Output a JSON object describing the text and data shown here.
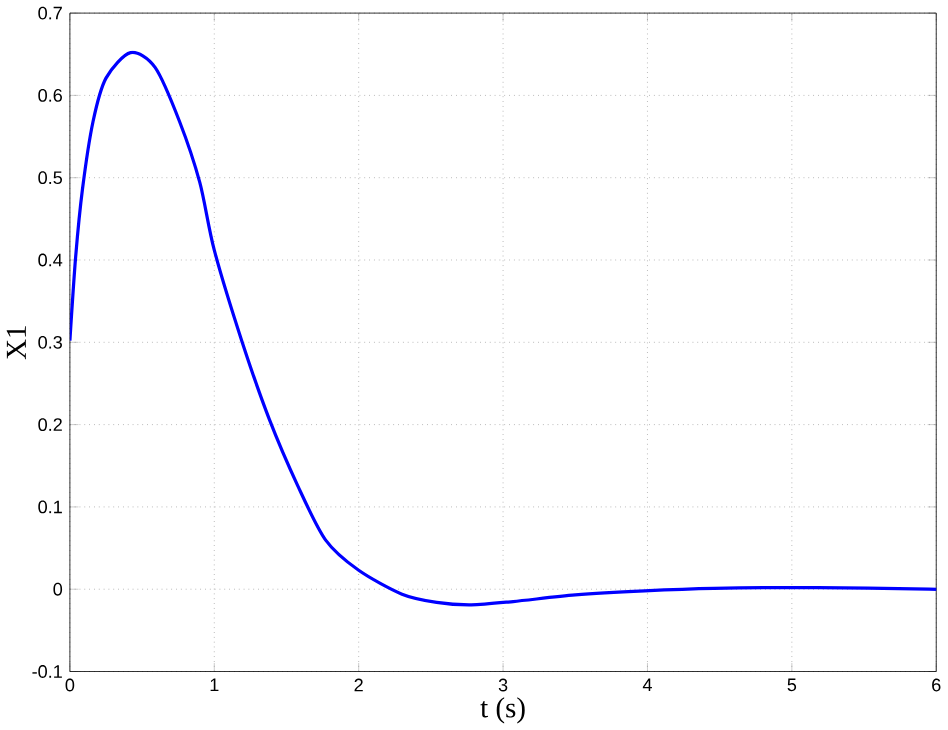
{
  "chart_data": {
    "type": "line",
    "xlabel": "t (s)",
    "ylabel": "X1",
    "x": [
      0,
      0.04,
      0.087,
      0.16,
      0.25,
      0.42,
      0.59,
      0.76,
      0.9,
      1.0,
      1.19,
      1.38,
      1.58,
      1.77,
      2.0,
      2.3,
      2.54,
      2.78,
      3.07,
      3.5,
      3.98,
      4.46,
      5.18,
      5.95,
      6
    ],
    "series": [
      {
        "color": "#0000ff",
        "values": [
          0.302,
          0.404,
          0.486,
          0.568,
          0.621,
          0.652,
          0.634,
          0.568,
          0.494,
          0.412,
          0.302,
          0.207,
          0.125,
          0.06,
          0.023,
          -0.006,
          -0.016,
          -0.019,
          -0.015,
          -0.007,
          -0.002,
          0.001,
          0.002,
          0,
          0
        ]
      }
    ],
    "xlim": [
      0,
      6
    ],
    "ylim": [
      -0.1,
      0.7
    ],
    "xticks": [
      0,
      1,
      2,
      3,
      4,
      5,
      6
    ],
    "yticks": [
      -0.1,
      0,
      0.1,
      0.2,
      0.3,
      0.4,
      0.5,
      0.6,
      0.7
    ],
    "grid": true,
    "line_style": "solid"
  }
}
